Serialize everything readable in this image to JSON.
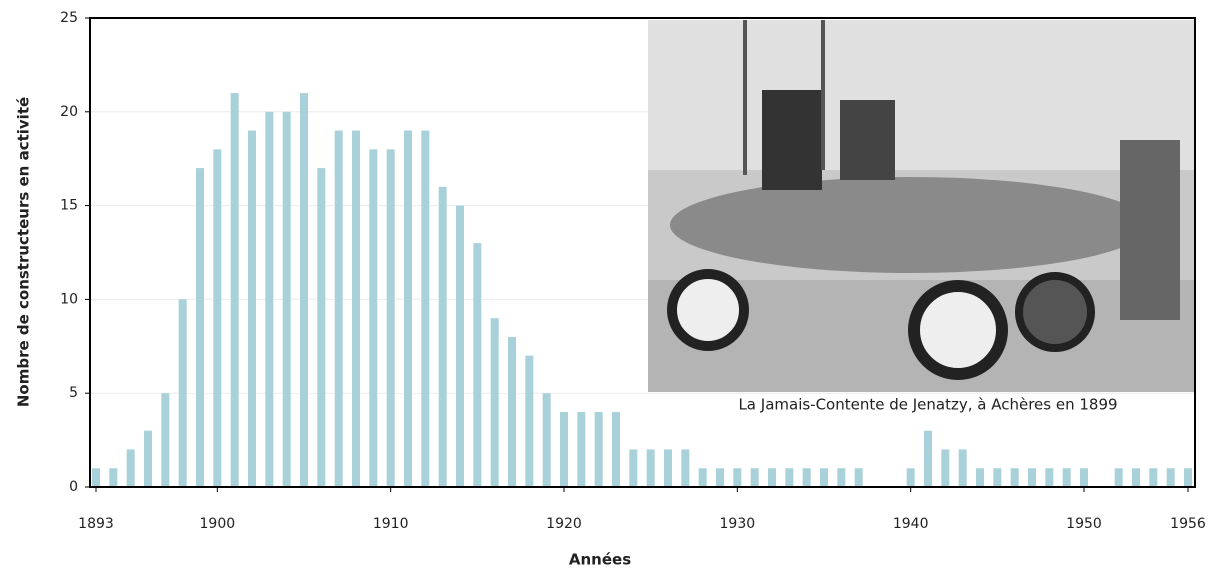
{
  "chart_data": {
    "type": "bar",
    "xlabel": "Années",
    "ylabel": "Nombre de constructeurs en activité",
    "annotation": "La Jamais-Contente de Jenatzy, à Achères en 1899",
    "x": [
      1893,
      1894,
      1895,
      1896,
      1897,
      1898,
      1899,
      1900,
      1901,
      1902,
      1903,
      1904,
      1905,
      1906,
      1907,
      1908,
      1909,
      1910,
      1911,
      1912,
      1913,
      1914,
      1915,
      1916,
      1917,
      1918,
      1919,
      1920,
      1921,
      1922,
      1923,
      1924,
      1925,
      1926,
      1927,
      1928,
      1929,
      1930,
      1931,
      1932,
      1933,
      1934,
      1935,
      1936,
      1937,
      1940,
      1941,
      1942,
      1943,
      1944,
      1945,
      1946,
      1947,
      1948,
      1949,
      1950,
      1952,
      1953,
      1954,
      1955,
      1956
    ],
    "values": [
      1,
      1,
      2,
      3,
      5,
      10,
      17,
      18,
      21,
      19,
      20,
      20,
      21,
      17,
      19,
      19,
      18,
      18,
      19,
      19,
      16,
      15,
      13,
      9,
      8,
      7,
      5,
      4,
      4,
      4,
      4,
      2,
      2,
      2,
      2,
      1,
      1,
      1,
      1,
      1,
      1,
      1,
      1,
      1,
      1,
      1,
      3,
      2,
      2,
      1,
      1,
      1,
      1,
      1,
      1,
      1,
      1,
      1,
      1,
      1,
      1
    ],
    "color": "#a9d1da",
    "xlim": [
      1893,
      1956
    ],
    "xticks": [
      1893,
      1900,
      1910,
      1920,
      1930,
      1940,
      1950,
      1956
    ],
    "ylim": [
      0,
      25
    ],
    "yticks": [
      0,
      5,
      10,
      15,
      20,
      25
    ],
    "grid": true
  }
}
